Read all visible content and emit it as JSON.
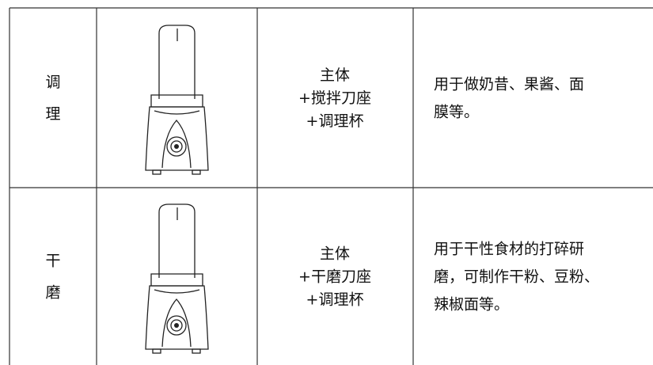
{
  "table": {
    "rows": [
      {
        "mode": [
          "调",
          "理"
        ],
        "components": [
          "主体",
          "+搅拌刀座",
          "+调理杯"
        ],
        "description": [
          "用于做奶昔、果酱、面",
          "膜等。"
        ]
      },
      {
        "mode": [
          "干",
          "磨"
        ],
        "components": [
          "主体",
          "+干磨刀座",
          "+调理杯"
        ],
        "description": [
          "用于干性食材的打碎研",
          "磨，可制作干粉、豆粉、",
          "辣椒面等。"
        ]
      }
    ]
  }
}
